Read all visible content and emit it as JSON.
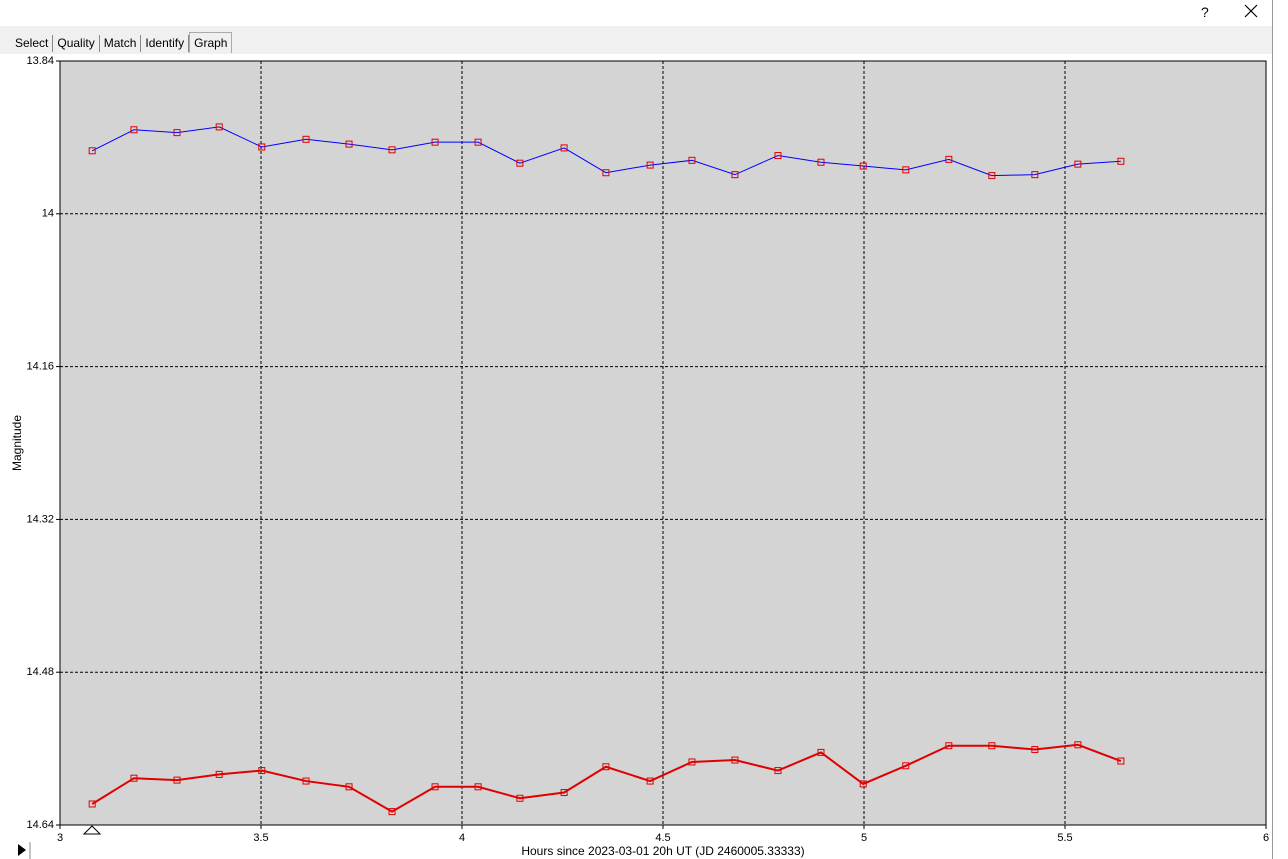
{
  "window": {
    "help": "?"
  },
  "tabs": [
    "Select",
    "Quality",
    "Match",
    "Identify",
    "Graph"
  ],
  "chart_data": {
    "type": "line",
    "y_label": "Magnitude",
    "x_label": "Hours since 2023-03-01 20h UT (JD 2460005.33333)",
    "x": [
      3.08,
      3.184,
      3.291,
      3.396,
      3.502,
      3.612,
      3.719,
      3.826,
      3.933,
      4.04,
      4.144,
      4.254,
      4.358,
      4.468,
      4.572,
      4.679,
      4.786,
      4.893,
      4.998,
      5.104,
      5.211,
      5.318,
      5.425,
      5.532,
      5.639
    ],
    "series": [
      {
        "color": "#0000ff",
        "marker_color": "#e00000",
        "values": [
          13.934,
          13.912,
          13.915,
          13.909,
          13.93,
          13.922,
          13.927,
          13.933,
          13.925,
          13.925,
          13.947,
          13.931,
          13.957,
          13.949,
          13.944,
          13.959,
          13.939,
          13.946,
          13.95,
          13.954,
          13.943,
          13.96,
          13.959,
          13.948,
          13.945
        ]
      },
      {
        "color": "#e00000",
        "marker_color": "#e00000",
        "values": [
          14.618,
          14.591,
          14.593,
          14.587,
          14.583,
          14.594,
          14.6,
          14.626,
          14.6,
          14.6,
          14.612,
          14.606,
          14.579,
          14.594,
          14.574,
          14.572,
          14.583,
          14.564,
          14.597,
          14.578,
          14.557,
          14.557,
          14.561,
          14.556,
          14.573
        ]
      }
    ],
    "xlim": [
      3,
      6
    ],
    "xticks": [
      3,
      3.5,
      4,
      4.5,
      5,
      5.5,
      6
    ],
    "ylim": [
      14.64,
      13.84
    ],
    "yticks": [
      13.84,
      14,
      14.16,
      14.32,
      14.48,
      14.64
    ],
    "grid": true
  }
}
